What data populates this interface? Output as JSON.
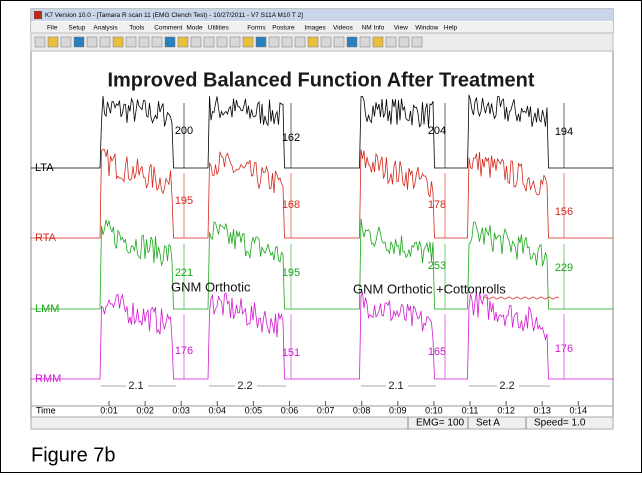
{
  "window": {
    "title": "K7 Version 10.0 - [Tamara R        scan 11 (EMG Clench Test) - 10/27/2011 - V7 S11A M10 T 2]",
    "menu": [
      "File",
      "Setup",
      "Analysis",
      "Tools",
      "Comment",
      "Mode",
      "Utilities",
      "Forms",
      "Posture",
      "Images",
      "Videos",
      "NM Info",
      "View",
      "Window",
      "Help"
    ]
  },
  "overlay_title": "Improved Balanced Function After Treatment",
  "channels": [
    {
      "name": "LTA",
      "color": "#000000",
      "readings": [
        200,
        162,
        204,
        194
      ]
    },
    {
      "name": "RTA",
      "color": "#d42a1e",
      "readings": [
        195,
        168,
        178,
        156
      ]
    },
    {
      "name": "LMM",
      "color": "#1aa81a",
      "readings": [
        221,
        195,
        253,
        229
      ]
    },
    {
      "name": "RMM",
      "color": "#d21ad2",
      "readings": [
        176,
        151,
        165,
        176
      ]
    }
  ],
  "annotations": [
    "GNM Orthotic",
    "GNM Orthotic +Cottonrolls"
  ],
  "durations": [
    "2.1",
    "2.2",
    "2.1",
    "2.2"
  ],
  "time_axis": {
    "label": "Time",
    "ticks": [
      "0:01",
      "0:02",
      "0:03",
      "0:04",
      "0:05",
      "0:06",
      "0:07",
      "0:08",
      "0:09",
      "0:10",
      "0:11",
      "0:12",
      "0:13",
      "0:14"
    ]
  },
  "status": [
    "EMG= 100",
    "Set A",
    "Speed= 1.0"
  ],
  "caption": "Figure 7b"
}
